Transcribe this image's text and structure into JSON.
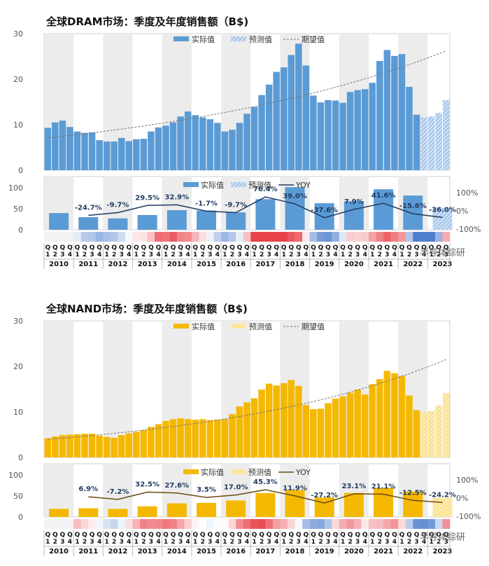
{
  "chart_data": [
    {
      "id": "dram",
      "type": "bar",
      "title": "全球DRAM市场：季度及年度销售额（B$)",
      "legend_top": [
        "实际值",
        "预测值",
        "期望值"
      ],
      "legend_bottom": [
        "实际值",
        "预测值",
        "YOY"
      ],
      "quarterly": {
        "ylim": [
          0,
          30
        ],
        "yticks": [
          "0",
          "10",
          "20",
          "30"
        ],
        "actual": [
          9.3,
          10.5,
          10.9,
          9.5,
          8.5,
          8.2,
          8.3,
          6.6,
          6.3,
          6.3,
          7.1,
          6.4,
          6.8,
          6.9,
          8.5,
          9.4,
          9.8,
          10.5,
          11.8,
          12.9,
          12.1,
          11.6,
          11.2,
          10.4,
          8.5,
          8.9,
          10.4,
          12.4,
          13.9,
          16.5,
          18.8,
          21.6,
          22.6,
          25.3,
          27.8,
          23.0,
          16.4,
          14.9,
          15.4,
          15.3,
          14.8,
          17.2,
          17.6,
          17.8,
          19.2,
          24.0,
          26.4,
          25.1,
          25.5,
          18.3,
          12.2
        ],
        "forecast": [
          11.6,
          11.8,
          12.6,
          15.4
        ],
        "expected_range": [
          7.1,
          26.2
        ]
      },
      "annual": {
        "ylim": [
          0,
          100
        ],
        "yticks": [
          "0",
          "50",
          "100"
        ],
        "values": [
          39.8,
          30.0,
          27.1,
          35.1,
          46.6,
          45.8,
          41.3,
          72.8,
          101.3,
          63.1,
          68.1,
          96.4,
          81.4,
          52.1
        ],
        "forecast_index": 13,
        "yoy": [
          null,
          -24.7,
          -9.7,
          29.5,
          32.9,
          -1.7,
          -9.7,
          76.4,
          39.0,
          -37.6,
          7.9,
          41.6,
          -15.6,
          -36.0
        ],
        "yoy_labels": [
          "",
          "-24.7%",
          "-9.7%",
          "29.5%",
          "32.9%",
          "-1.7%",
          "-9.7%",
          "76.4%",
          "39.0%",
          "-37.6%",
          "7.9%",
          "41.6%",
          "-15.6%",
          "-36.0%"
        ],
        "yoy_axis": [
          "100%",
          "0%",
          "-100%"
        ]
      },
      "colors": {
        "actual": "#5b9bd5",
        "forecast": "#a9c9ec",
        "yoy": "#1f3a5f",
        "expected": "#777777",
        "heat_pos": "#e8424a",
        "heat_neg": "#3b6fc7"
      },
      "quarter_labels": [
        "Q",
        "1",
        "2",
        "3",
        "4"
      ],
      "years": [
        "2010",
        "2011",
        "2012",
        "2013",
        "2014",
        "2015",
        "2016",
        "2017",
        "2018",
        "2019",
        "2020",
        "2021",
        "2022",
        "2023"
      ]
    },
    {
      "id": "nand",
      "type": "bar",
      "title": "全球NAND市场：季度及年度销售额（B$)",
      "legend_top": [
        "实际值",
        "预测值",
        "期望值"
      ],
      "legend_bottom": [
        "实际值",
        "预测值",
        "YOY"
      ],
      "quarterly": {
        "ylim": [
          0,
          30
        ],
        "yticks": [
          "0",
          "10",
          "20",
          "30"
        ],
        "actual": [
          4.2,
          4.6,
          4.9,
          5.0,
          5.1,
          5.2,
          5.2,
          4.8,
          4.5,
          4.3,
          4.9,
          5.3,
          5.6,
          6.0,
          6.7,
          7.3,
          8.0,
          8.4,
          8.6,
          8.4,
          8.3,
          8.4,
          8.2,
          8.3,
          8.4,
          9.5,
          11.2,
          12.1,
          13.0,
          14.9,
          16.2,
          15.8,
          16.3,
          17.0,
          15.7,
          11.5,
          10.6,
          10.7,
          11.9,
          12.9,
          13.4,
          14.2,
          14.9,
          13.8,
          16.1,
          17.2,
          19.0,
          18.5,
          17.9,
          13.6,
          10.4
        ],
        "forecast": [
          9.9,
          10.2,
          11.4,
          14.1
        ],
        "expected_range": [
          4.0,
          21.5
        ]
      },
      "annual": {
        "ylim": [
          0,
          100
        ],
        "yticks": [
          "0",
          "50",
          "100"
        ],
        "values": [
          19.4,
          20.7,
          19.2,
          25.4,
          32.4,
          33.5,
          39.2,
          56.9,
          63.7,
          46.4,
          57.1,
          69.1,
          60.5,
          45.9
        ],
        "forecast_index": 13,
        "yoy": [
          null,
          6.9,
          -7.2,
          32.5,
          27.6,
          3.5,
          17.0,
          45.3,
          11.9,
          -27.2,
          23.1,
          21.1,
          -12.5,
          -24.2
        ],
        "yoy_labels": [
          "",
          "6.9%",
          "-7.2%",
          "32.5%",
          "27.6%",
          "3.5%",
          "17.0%",
          "45.3%",
          "11.9%",
          "-27.2%",
          "23.1%",
          "21.1%",
          "-12.5%",
          "-24.2%"
        ],
        "yoy_axis": [
          "100%",
          "0%",
          "-100%"
        ]
      },
      "colors": {
        "actual": "#f5b800",
        "forecast": "#fbe08a",
        "yoy": "#6b4a12",
        "expected": "#777777",
        "heat_pos": "#e8424a",
        "heat_neg": "#3b6fc7"
      },
      "quarter_labels": [
        "Q",
        "1",
        "2",
        "3",
        "4"
      ],
      "years": [
        "2010",
        "2011",
        "2012",
        "2013",
        "2014",
        "2015",
        "2016",
        "2017",
        "2018",
        "2019",
        "2020",
        "2021",
        "2022",
        "2023"
      ]
    }
  ],
  "watermark": "半导体综研"
}
